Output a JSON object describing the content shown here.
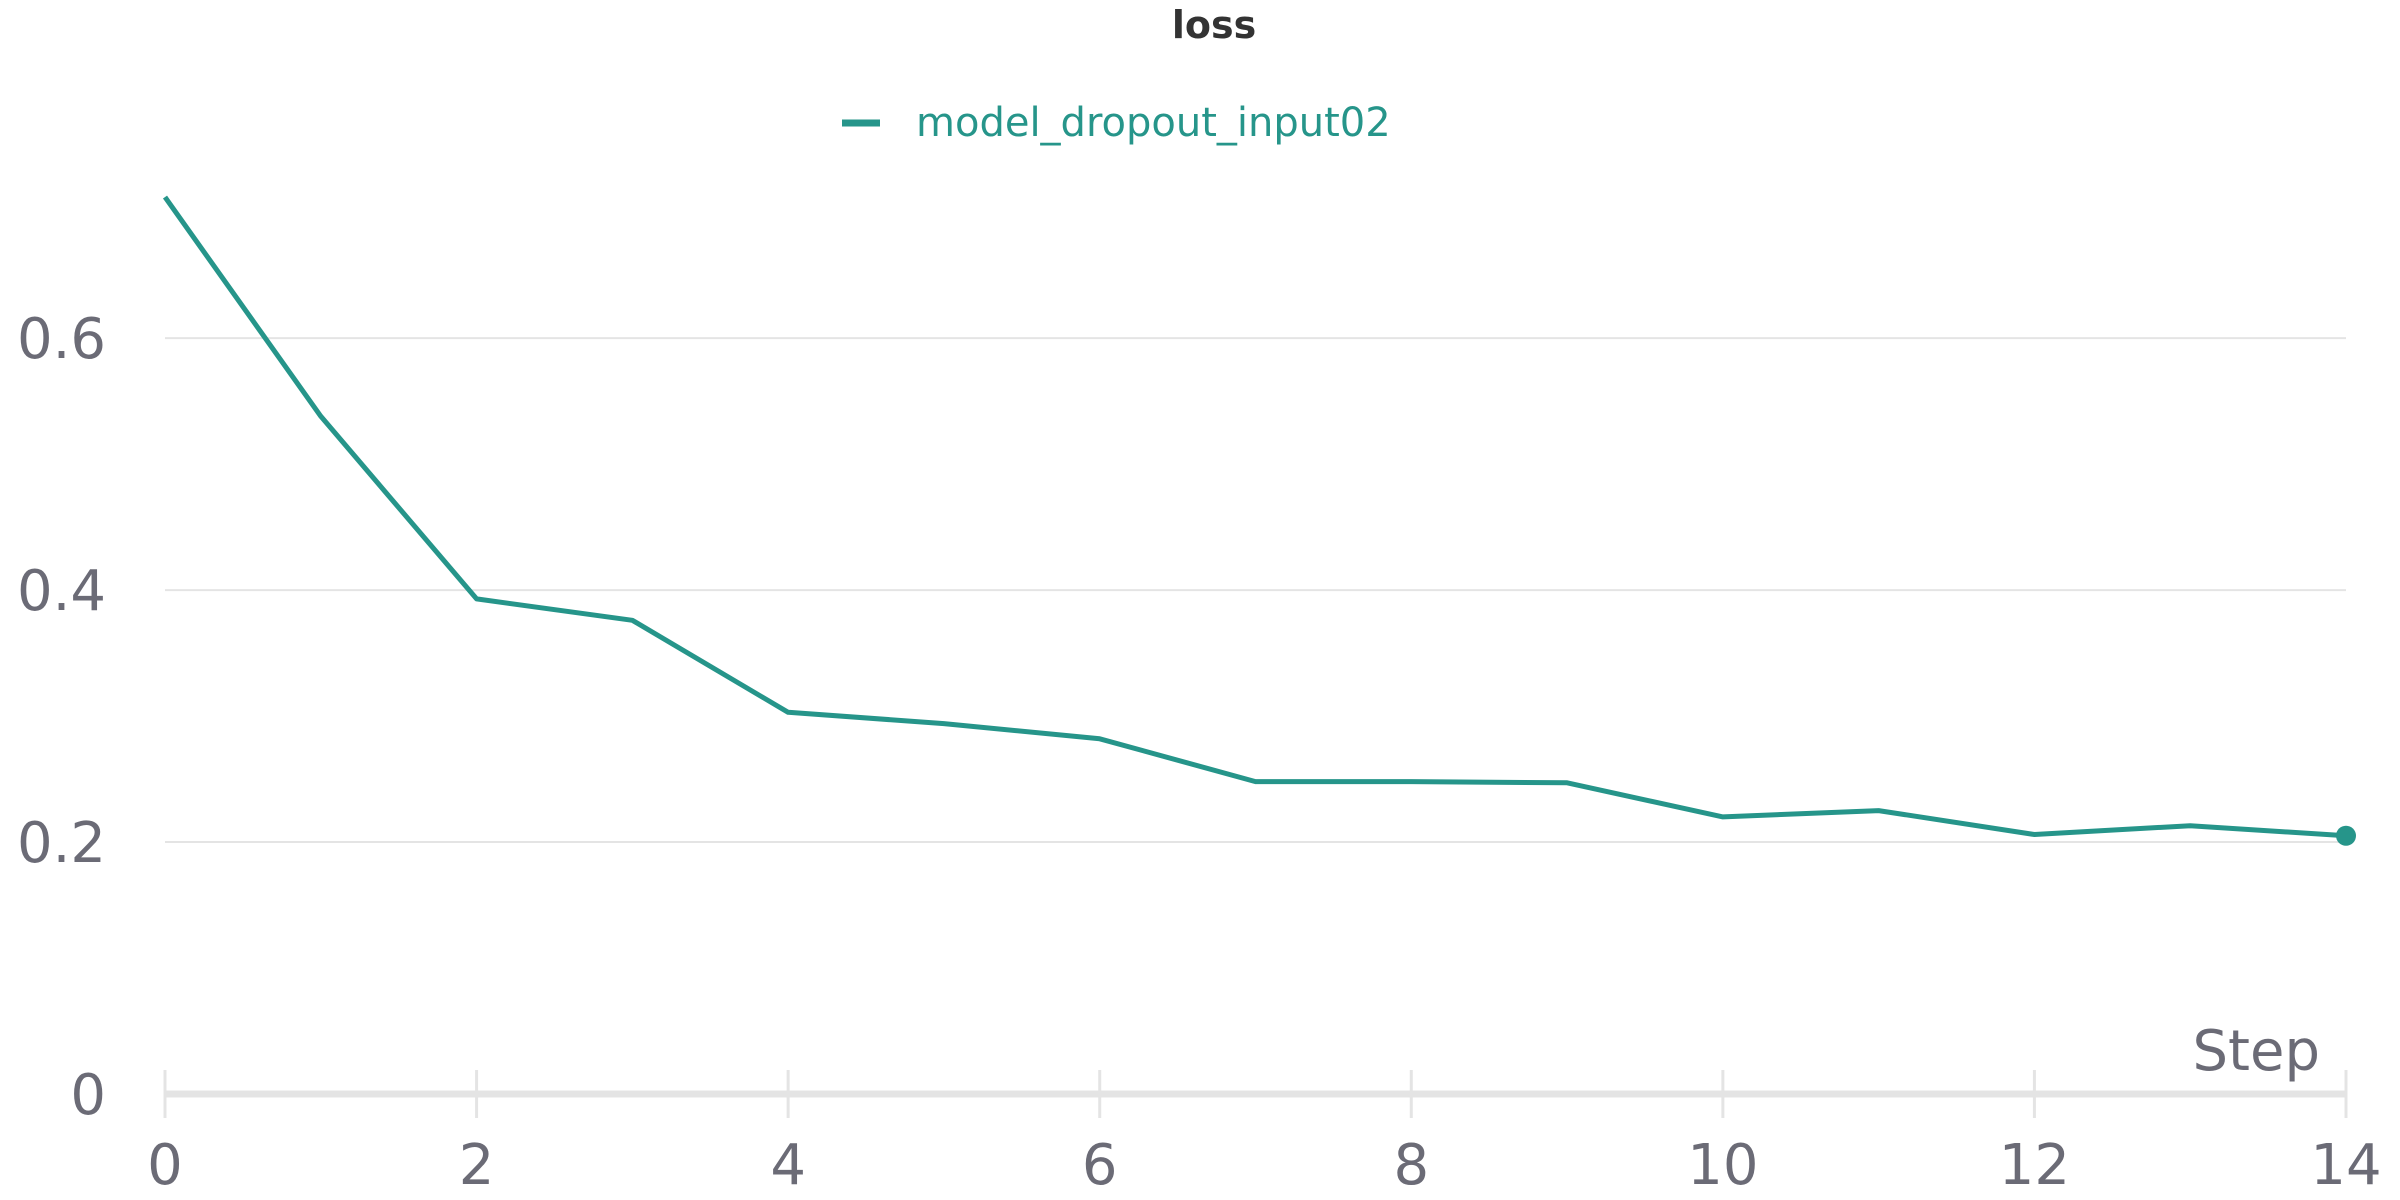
{
  "chart_data": {
    "type": "line",
    "title": "loss",
    "xlabel": "Step",
    "ylabel": "",
    "xlim": [
      0,
      14
    ],
    "ylim": [
      0,
      0.72
    ],
    "x_ticks": [
      0,
      2,
      4,
      6,
      8,
      10,
      12,
      14
    ],
    "x_tick_labels": [
      "0",
      "2",
      "4",
      "6",
      "8",
      "10",
      "12",
      "14"
    ],
    "y_ticks": [
      0,
      0.2,
      0.4,
      0.6
    ],
    "y_tick_labels": [
      "0",
      "0.2",
      "0.4",
      "0.6"
    ],
    "grid": "horizontal",
    "legend": "top-center",
    "series": [
      {
        "name": "model_dropout_input02",
        "color": "#26958a",
        "x": [
          0,
          1,
          2,
          3,
          4,
          5,
          6,
          7,
          8,
          9,
          10,
          11,
          12,
          13,
          14
        ],
        "y": [
          0.712,
          0.538,
          0.393,
          0.376,
          0.303,
          0.294,
          0.282,
          0.248,
          0.248,
          0.247,
          0.22,
          0.225,
          0.206,
          0.213,
          0.205
        ],
        "last_point_marker": true
      }
    ]
  },
  "colors": {
    "text": "#6b6b76",
    "title": "#333333",
    "grid": "#e4e4e4",
    "axis": "#e4e4e4"
  }
}
